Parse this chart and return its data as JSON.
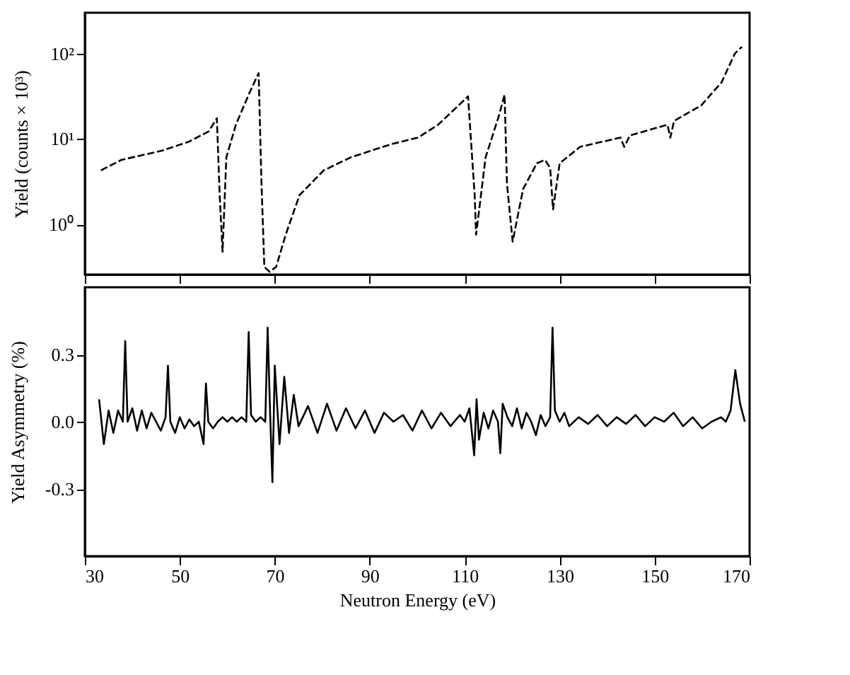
{
  "chart_data": [
    {
      "type": "line",
      "ylabel": "Yield (counts × 10³)",
      "log": true,
      "grid": false,
      "tick_labels": "y",
      "marker": "none",
      "line_style": "dashed",
      "xlim": [
        30,
        170
      ],
      "xticks": [
        30,
        50,
        70,
        90,
        110,
        130,
        150,
        170
      ],
      "ylim": [
        0.26,
        300
      ],
      "yticks": [
        {
          "value": 1,
          "label": "10⁰"
        },
        {
          "value": 10,
          "label": "10¹"
        },
        {
          "value": 100,
          "label": "10²"
        }
      ],
      "series": [
        {
          "color": "#000000",
          "x": [
            33.4,
            37.7,
            46.2,
            51.9,
            56.1,
            57.8,
            58.4,
            59.0,
            59.8,
            61.8,
            64.7,
            66.6,
            67.2,
            67.8,
            68.9,
            70.3,
            72.3,
            75.2,
            80.3,
            86.0,
            94.5,
            100.2,
            104.4,
            108.7,
            110.7,
            112.1,
            112.4,
            114.4,
            117.2,
            118.4,
            118.9,
            120.1,
            122.3,
            125.2,
            126.9,
            128.0,
            128.6,
            130.0,
            134.3,
            142.8,
            143.6,
            144.8,
            152.7,
            153.3,
            154.1,
            159.8,
            164.1,
            166.9,
            168.4
          ],
          "values": [
            4.3,
            5.7,
            7.3,
            9.3,
            12.3,
            17.5,
            2.2,
            0.48,
            6.1,
            14.7,
            35,
            59,
            3,
            0.32,
            0.28,
            0.32,
            0.76,
            2.2,
            4.3,
            6.1,
            8.7,
            10.4,
            14.7,
            24.7,
            31.6,
            2.2,
            0.76,
            6.1,
            18.7,
            33,
            3,
            0.63,
            2.6,
            5.2,
            5.7,
            4.6,
            1.5,
            5.2,
            8.1,
            10.4,
            8.1,
            11,
            14.7,
            10.4,
            16.3,
            24.7,
            46,
            100,
            120
          ]
        }
      ]
    },
    {
      "type": "line",
      "xlabel": "Neutron Energy (eV)",
      "ylabel": "Yield Asymmetry (%)",
      "grid": false,
      "marker": "none",
      "line_style": "solid",
      "xlim": [
        30,
        170
      ],
      "xticks": [
        30,
        50,
        70,
        90,
        110,
        130,
        150,
        170
      ],
      "ylim": [
        -0.6,
        0.6
      ],
      "yticks": [
        {
          "value": 0.3,
          "label": "0.3"
        },
        {
          "value": 0,
          "label": "0.0"
        },
        {
          "value": -0.3,
          "label": "-0.3"
        }
      ],
      "series": [
        {
          "color": "#000000",
          "x": [
            33,
            34,
            35,
            36,
            37,
            38,
            38.5,
            39,
            40,
            41,
            42,
            43,
            44,
            45,
            46,
            47,
            47.5,
            48,
            49,
            50,
            51,
            52,
            53,
            54,
            55,
            55.5,
            56,
            57,
            58,
            59,
            60,
            61,
            62,
            63,
            64,
            64.5,
            65,
            66,
            67,
            68,
            68.5,
            69,
            69.5,
            70,
            71,
            72,
            73,
            74,
            75,
            77,
            79,
            81,
            83,
            85,
            87,
            89,
            91,
            93,
            95,
            97,
            99,
            101,
            103,
            105,
            107,
            109,
            110,
            111,
            112,
            112.5,
            113,
            114,
            115,
            116,
            117,
            117.5,
            118,
            119,
            120,
            121,
            122,
            123,
            124,
            125,
            126,
            127,
            128,
            128.5,
            129,
            130,
            131,
            132,
            134,
            136,
            138,
            140,
            142,
            144,
            146,
            148,
            150,
            152,
            154,
            156,
            158,
            160,
            162,
            164,
            165,
            166,
            167,
            168,
            169
          ],
          "values": [
            0.1,
            -0.1,
            0.05,
            -0.05,
            0.05,
            0.0,
            0.36,
            0.0,
            0.06,
            -0.04,
            0.05,
            -0.03,
            0.04,
            0.0,
            -0.04,
            0.02,
            0.25,
            0.0,
            -0.05,
            0.02,
            -0.03,
            0.01,
            -0.02,
            0.0,
            -0.1,
            0.17,
            0.0,
            -0.03,
            0.0,
            0.02,
            0.0,
            0.02,
            0.0,
            0.02,
            0.0,
            0.4,
            0.03,
            0.0,
            0.02,
            0.0,
            0.42,
            0.05,
            -0.27,
            0.25,
            -0.1,
            0.2,
            -0.05,
            0.12,
            -0.02,
            0.07,
            -0.05,
            0.08,
            -0.04,
            0.06,
            -0.03,
            0.05,
            -0.05,
            0.04,
            0.0,
            0.03,
            -0.04,
            0.05,
            -0.03,
            0.04,
            -0.02,
            0.03,
            0.0,
            0.06,
            -0.15,
            0.1,
            -0.08,
            0.04,
            -0.03,
            0.05,
            0.0,
            -0.14,
            0.08,
            0.02,
            -0.02,
            0.06,
            -0.03,
            0.04,
            0.0,
            -0.06,
            0.03,
            -0.02,
            0.02,
            0.42,
            0.05,
            0.0,
            0.04,
            -0.02,
            0.02,
            -0.01,
            0.03,
            -0.02,
            0.02,
            -0.01,
            0.03,
            -0.02,
            0.02,
            0.0,
            0.04,
            -0.02,
            0.02,
            -0.03,
            0.0,
            0.02,
            0.0,
            0.05,
            0.23,
            0.08,
            0.0
          ]
        }
      ]
    }
  ]
}
